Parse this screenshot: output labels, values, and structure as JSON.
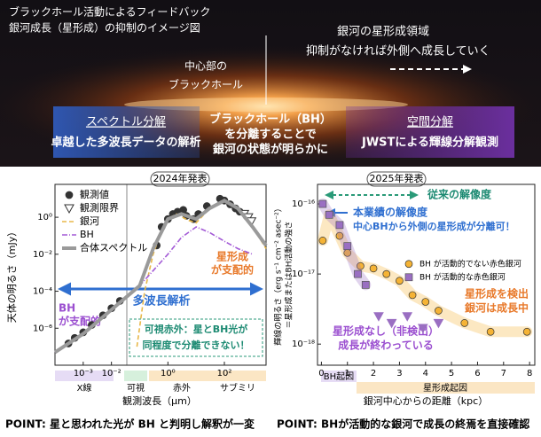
{
  "header": {
    "title": [
      "ブラックホール活動によるフィードバック",
      "銀河成長（星形成）の抑制のイメージ図"
    ],
    "growth_note": [
      "銀河の星形成領域",
      "抑制がなければ外側へ成長していく"
    ],
    "bh_label": [
      "中心部の",
      "ブラックホール"
    ],
    "left_box": {
      "title": "スペクトル分解",
      "subtitle": "卓越した多波長データの解析"
    },
    "center_text": [
      "ブラックホール（BH）",
      "を分離することで",
      "銀河の状態が明らかに"
    ],
    "right_box": {
      "title": "空間分解",
      "subtitle": "JWSTによる輝線分解観測"
    }
  },
  "footer": [
    "POINT: 星と思われた光が BH と判明し解釈が一変",
    "POINT: BHが活動的な銀河で成長の終焉を直接確認"
  ],
  "chart_data": [
    {
      "type": "scatter",
      "badge": "2024年発表",
      "xlabel": "観測波長（μm）",
      "ylabel": "天体の明るさ（mJy）",
      "xscale": "log",
      "yscale": "log",
      "xlim": [
        0.0001,
        3000
      ],
      "ylim": [
        1e-08,
        60
      ],
      "xticks": [
        {
          "value": 0.001,
          "label": "10⁻³"
        },
        {
          "value": 0.01,
          "label": "10⁻²"
        },
        {
          "value": 1,
          "label": "10⁰"
        },
        {
          "value": 100,
          "label": "10²"
        }
      ],
      "yticks": [
        {
          "value": 1,
          "label": "10⁰"
        },
        {
          "value": 0.01,
          "label": "10⁻²"
        },
        {
          "value": 0.0001,
          "label": "10⁻⁴"
        },
        {
          "value": 1e-06,
          "label": "10⁻⁶"
        }
      ],
      "grid": false,
      "legend": "upper left",
      "series": [
        {
          "name": "観測値",
          "color": "#333333",
          "style": "points",
          "marker": "circle",
          "x": [
            0.0003,
            0.0005,
            0.001,
            0.002,
            0.005,
            0.01,
            0.02,
            0.4,
            0.6,
            1,
            1.5,
            2.2,
            3.5,
            4.5,
            8,
            12,
            24,
            70,
            100,
            160,
            250,
            350
          ],
          "values": [
            1.5e-07,
            3e-07,
            6e-07,
            1.5e-06,
            5e-06,
            1.2e-05,
            3e-05,
            0.03,
            0.3,
            0.8,
            1.5,
            2,
            2.5,
            1.2,
            0.8,
            1.5,
            4,
            10,
            8,
            5,
            3,
            2
          ]
        },
        {
          "name": "観測限界",
          "color": "#333333",
          "style": "points",
          "marker": "triangle-down",
          "x": [
            500,
            700,
            900
          ],
          "values": [
            1.5,
            1,
            0.6
          ]
        },
        {
          "name": "銀河",
          "color": "#e8b84a",
          "style": "line",
          "dash": "5 3",
          "x": [
            0.08,
            0.15,
            0.3,
            0.6,
            1,
            2,
            5,
            10,
            30,
            100,
            300,
            1000,
            3000
          ],
          "values": [
            1e-07,
            0.0001,
            0.01,
            0.2,
            0.8,
            1.5,
            0.7,
            0.5,
            3,
            8,
            3,
            0.3,
            0.02
          ]
        },
        {
          "name": "BH",
          "color": "#a35ad6",
          "style": "line",
          "dash": "6 2 1 2",
          "x": [
            0.0001,
            0.001,
            0.01,
            0.1,
            1,
            3,
            10,
            30,
            100,
            300,
            1000
          ],
          "values": [
            5e-08,
            5e-07,
            1e-05,
            0.0002,
            0.01,
            0.08,
            0.3,
            0.15,
            0.05,
            0.02,
            0.01
          ]
        },
        {
          "name": "合体スペクトル",
          "color": "#9a9a9a",
          "style": "line",
          "width": 4,
          "x": [
            0.0001,
            0.001,
            0.01,
            0.1,
            0.3,
            1,
            3,
            10,
            30,
            100,
            300,
            1000,
            3000
          ],
          "values": [
            5e-08,
            5e-07,
            1e-05,
            0.0002,
            0.02,
            0.8,
            1.5,
            0.8,
            3,
            8,
            3,
            0.3,
            0.03
          ]
        }
      ],
      "annotations": {
        "multiwavelength": "多波長解析",
        "bh_dominant": [
          "BH",
          "が支配的"
        ],
        "sf_dominant": [
          "星形成",
          "が支配的"
        ],
        "optical_ir": [
          "可視赤外：星とBH光が",
          "同程度で分離できない！"
        ],
        "bands": [
          "X線",
          "可視",
          "赤外",
          "サブミリ"
        ]
      }
    },
    {
      "type": "scatter",
      "badge": "2025年発表",
      "xlabel": "銀河中心からの距離（kpc）",
      "ylabel": [
        "輝線の明るさ（erg s⁻¹ cm⁻² asec⁻²）",
        "＝星形成またはBH活動の強さ"
      ],
      "xscale": "linear",
      "yscale": "log",
      "xlim": [
        -0.15,
        8.2
      ],
      "ylim": [
        5e-19,
        1.9e-16
      ],
      "xticks": [
        0,
        1,
        2,
        3,
        4,
        5,
        6,
        7,
        8
      ],
      "yticks": [
        {
          "value": 1e-16,
          "label": "10⁻¹⁶"
        },
        {
          "value": 1e-17,
          "label": "10⁻¹⁷"
        },
        {
          "value": 1e-18,
          "label": "10⁻¹⁸"
        }
      ],
      "grid": false,
      "legend": "center right",
      "series": [
        {
          "name": "BH が活動的でない赤色銀河",
          "color": "#f5b335",
          "style": "points",
          "marker": "circle",
          "band": true,
          "x": [
            0.05,
            0.3,
            0.7,
            1.0,
            1.5,
            2.0,
            2.5,
            3.0,
            3.5,
            4.0,
            4.5,
            5.5,
            6.5,
            7.9
          ],
          "values": [
            3e-17,
            7e-17,
            3.5e-17,
            2e-17,
            1.3e-17,
            1.2e-17,
            1e-17,
            8e-18,
            5e-18,
            4e-18,
            3e-18,
            2e-18,
            1.5e-18,
            1.5e-18
          ]
        },
        {
          "name": "BH が活動的な赤色銀河",
          "color": "#9a6fc2",
          "style": "points",
          "marker": "square",
          "band": true,
          "x": [
            0.05,
            0.3,
            0.7,
            1.0,
            1.4,
            1.7
          ],
          "values": [
            1e-16,
            7e-17,
            5e-17,
            2.5e-17,
            1e-17,
            7e-18
          ]
        },
        {
          "color": "#9a6fc2",
          "style": "points",
          "marker": "triangle-down",
          "x": [
            2.2,
            2.7,
            3.3,
            3.9,
            4.5
          ],
          "values": [
            2.5e-18,
            2e-18,
            2.5e-18,
            1.7e-18,
            2e-18
          ]
        }
      ],
      "annotations": {
        "old_resolution": "従来の解像度",
        "new_resolution": [
          "本業績の解像度",
          "中心BHから外側の星形成が分離可！"
        ],
        "sf_detected": [
          "星形成を検出",
          "銀河は成長中"
        ],
        "sf_none": [
          "星形成なし（非検出）",
          "成長が終わっている"
        ],
        "bands": [
          "BH起因",
          "星形成起因"
        ]
      }
    }
  ]
}
